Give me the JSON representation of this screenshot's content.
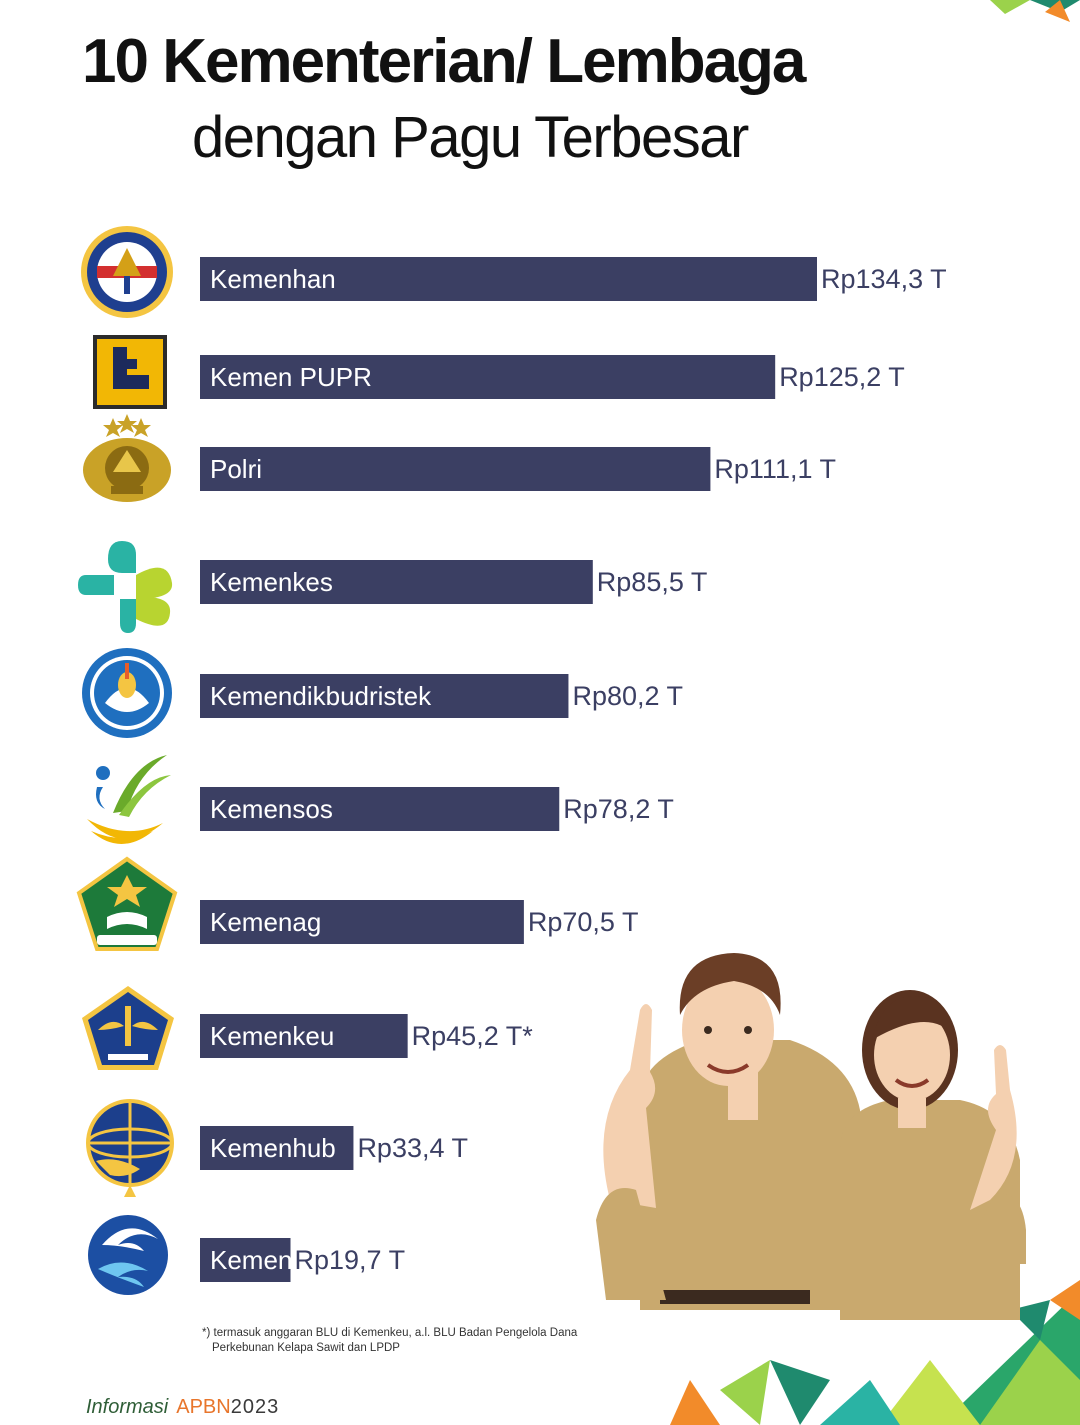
{
  "header": {
    "title_line1": "10 Kementerian/ Lembaga",
    "title_line2": "dengan Pagu Terbesar"
  },
  "chart_data": {
    "type": "bar",
    "orientation": "horizontal",
    "title": "10 Kementerian/ Lembaga dengan Pagu Terbesar",
    "categories": [
      "Kemenhan",
      "Kemen PUPR",
      "Polri",
      "Kemenkes",
      "Kemendikbudristek",
      "Kemensos",
      "Kemenag",
      "Kemenkeu",
      "Kemenhub",
      "Kemenkominfo"
    ],
    "values": [
      134.3,
      125.2,
      111.1,
      85.5,
      80.2,
      78.2,
      70.5,
      45.2,
      33.4,
      19.7
    ],
    "value_labels": [
      "Rp134,3 T",
      "Rp125,2 T",
      "Rp111,1 T",
      "Rp85,5 T",
      "Rp80,2 T",
      "Rp78,2 T",
      "Rp70,5 T",
      "Rp45,2 T*",
      "Rp33,4 T",
      "Rp19,7 T"
    ],
    "logo_icons": [
      "kemenhan-logo-icon",
      "pupr-logo-icon",
      "polri-logo-icon",
      "kemenkes-logo-icon",
      "tut-wuri-handayani-logo-icon",
      "kemensos-logo-icon",
      "kemenag-logo-icon",
      "kemenkeu-logo-icon",
      "kemenhub-logo-icon",
      "kominfo-logo-icon"
    ],
    "bar_color": "#3b3f63",
    "xlim": [
      0,
      140
    ]
  },
  "footnote": {
    "line1": "*) termasuk anggaran BLU di Kemenkeu, a.l. BLU Badan Pengelola Dana",
    "line2": "Perkebunan Kelapa Sawit dan LPDP"
  },
  "brand": {
    "info": "Informasi",
    "apbn": "APBN",
    "year": "2023"
  },
  "colors": {
    "bar": "#3b3f63",
    "label_text": "#3b3f63",
    "brand_green": "#2f5e37",
    "brand_orange": "#e8762c"
  },
  "illustration": "two-civil-servants-pointing-up-illustration"
}
